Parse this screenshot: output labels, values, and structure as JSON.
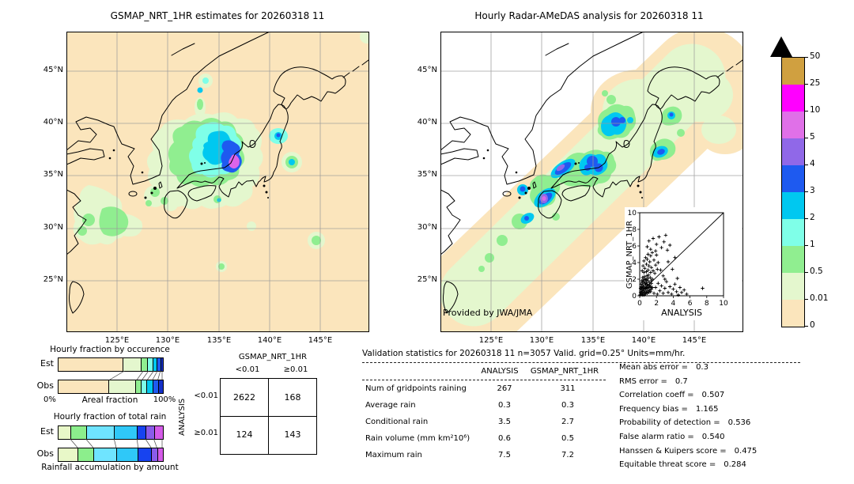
{
  "titles": {
    "left": "GSMAP_NRT_1HR estimates for 20260318 11",
    "right": "Hourly Radar-AMeDAS analysis for 20260318 11"
  },
  "maps": {
    "lat_ticks": [
      "45°N",
      "40°N",
      "35°N",
      "30°N",
      "25°N"
    ],
    "lon_ticks": [
      "125°E",
      "130°E",
      "135°E",
      "140°E",
      "145°E"
    ],
    "credit": "Provided by JWA/JMA"
  },
  "colorbar": {
    "tick_labels": [
      "50",
      "25",
      "10",
      "5",
      "4",
      "3",
      "2",
      "1",
      "0.5",
      "0.01",
      "0"
    ],
    "band_colors_top_to_bottom": [
      "#D0A040",
      "#FF00FF",
      "#E070E8",
      "#9068E8",
      "#1E5AF0",
      "#00C8F0",
      "#7FFFE8",
      "#90EE90",
      "#E4F7CE",
      "#FBE5BC"
    ],
    "over_color": "#000000"
  },
  "inset": {
    "xlabel": "ANALYSIS",
    "ylabel": "GSMAP_NRT_1HR",
    "tick_labels": [
      "0",
      "2",
      "4",
      "6",
      "8",
      "10"
    ]
  },
  "occurrence_chart": {
    "title": "Hourly fraction by occurence",
    "rows": [
      "Est",
      "Obs"
    ],
    "x_left": "0%",
    "x_label": "Areal fraction",
    "x_right": "100%"
  },
  "totalrain_chart": {
    "title": "Hourly fraction of total rain",
    "rows": [
      "Est",
      "Obs"
    ],
    "caption": "Rainfall accumulation by amount"
  },
  "contingency": {
    "col_title": "GSMAP_NRT_1HR",
    "row_title": "ANALYSIS",
    "col_labels": [
      "<0.01",
      "≥0.01"
    ],
    "row_labels": [
      "<0.01",
      "≥0.01"
    ],
    "cells": [
      [
        "2622",
        "168"
      ],
      [
        "124",
        "143"
      ]
    ]
  },
  "validation": {
    "header": "Validation statistics for 20260318 11  n=3057 Valid. grid=0.25° Units=mm/hr.",
    "col_headers": [
      "ANALYSIS",
      "GSMAP_NRT_1HR"
    ],
    "rows": [
      {
        "label": "Num of gridpoints raining",
        "analysis": "267",
        "gsmap": "311"
      },
      {
        "label": "Average rain",
        "analysis": "0.3",
        "gsmap": "0.3"
      },
      {
        "label": "Conditional rain",
        "analysis": "3.5",
        "gsmap": "2.7"
      },
      {
        "label": "Rain volume (mm km²10⁶)",
        "analysis": "0.6",
        "gsmap": "0.5"
      },
      {
        "label": "Maximum rain",
        "analysis": "7.5",
        "gsmap": "7.2"
      }
    ],
    "stats": [
      {
        "label": "Mean abs error =",
        "value": "0.3"
      },
      {
        "label": "RMS error =",
        "value": "0.7"
      },
      {
        "label": "Correlation coeff =",
        "value": "0.507"
      },
      {
        "label": "Frequency bias =",
        "value": "1.165"
      },
      {
        "label": "Probability of detection =",
        "value": "0.536"
      },
      {
        "label": "False alarm ratio =",
        "value": "0.540"
      },
      {
        "label": "Hanssen & Kuipers score =",
        "value": "0.475"
      },
      {
        "label": "Equitable threat score =",
        "value": "0.284"
      }
    ]
  },
  "chart_data": [
    {
      "type": "map",
      "name": "GSMAP_NRT_1HR estimates",
      "region": "Japan 120-150E 20-49N",
      "units": "mm/hr",
      "colorbar_levels": [
        0,
        0.01,
        0.5,
        1,
        2,
        3,
        4,
        5,
        10,
        25,
        50
      ]
    },
    {
      "type": "map",
      "name": "Hourly Radar-AMeDAS analysis",
      "region": "Japan 120-150E 20-49N",
      "units": "mm/hr",
      "colorbar_levels": [
        0,
        0.01,
        0.5,
        1,
        2,
        3,
        4,
        5,
        10,
        25,
        50
      ]
    },
    {
      "type": "bar",
      "subtype": "stacked-horizontal",
      "title": "Hourly fraction by occurence",
      "xlabel": "Areal fraction",
      "xlim_labels": [
        "0%",
        "100%"
      ],
      "categories": [
        "Est",
        "Obs"
      ],
      "segment_colors": [
        "#FBE5BC",
        "#E4F7CE",
        "#90EE90",
        "#7FFFE8",
        "#00C8F0",
        "#1E5AF0",
        "#1530C8"
      ],
      "series": [
        {
          "name": "Est",
          "fractions": [
            0.64,
            0.18,
            0.05,
            0.05,
            0.035,
            0.028,
            0.017
          ]
        },
        {
          "name": "Obs",
          "fractions": [
            0.5,
            0.26,
            0.05,
            0.05,
            0.05,
            0.05,
            0.04
          ]
        }
      ]
    },
    {
      "type": "bar",
      "subtype": "stacked-horizontal",
      "title": "Hourly fraction of total rain",
      "xlabel": "Rainfall accumulation by amount",
      "categories": [
        "Est",
        "Obs"
      ],
      "segment_colors": [
        "#E8F8C8",
        "#8CEE8C",
        "#6FE4FF",
        "#2FC8F8",
        "#1743F0",
        "#8A5CEA",
        "#D45BE8"
      ],
      "series": [
        {
          "name": "Est",
          "fractions": [
            0.12,
            0.15,
            0.27,
            0.22,
            0.08,
            0.08,
            0.08
          ]
        },
        {
          "name": "Obs",
          "fractions": [
            0.19,
            0.15,
            0.22,
            0.21,
            0.125,
            0.055,
            0.05
          ]
        }
      ]
    },
    {
      "type": "table",
      "title": "Contingency table",
      "col_axis": "GSMAP_NRT_1HR",
      "row_axis": "ANALYSIS",
      "col_bins": [
        "<0.01",
        ">=0.01"
      ],
      "row_bins": [
        "<0.01",
        ">=0.01"
      ],
      "values": [
        [
          2622,
          168
        ],
        [
          124,
          143
        ]
      ]
    },
    {
      "type": "table",
      "title": "Validation statistics for 20260318 11",
      "n": 3057,
      "grid": "0.25deg",
      "units": "mm/hr",
      "columns": [
        "ANALYSIS",
        "GSMAP_NRT_1HR"
      ],
      "rows": [
        {
          "label": "Num of gridpoints raining",
          "values": [
            267,
            311
          ]
        },
        {
          "label": "Average rain",
          "values": [
            0.3,
            0.3
          ]
        },
        {
          "label": "Conditional rain",
          "values": [
            3.5,
            2.7
          ]
        },
        {
          "label": "Rain volume (mm km2 10^6)",
          "values": [
            0.6,
            0.5
          ]
        },
        {
          "label": "Maximum rain",
          "values": [
            7.5,
            7.2
          ]
        }
      ],
      "scores": {
        "Mean abs error": 0.3,
        "RMS error": 0.7,
        "Correlation coeff": 0.507,
        "Frequency bias": 1.165,
        "Probability of detection": 0.536,
        "False alarm ratio": 0.54,
        "Hanssen & Kuipers score": 0.475,
        "Equitable threat score": 0.284
      }
    },
    {
      "type": "scatter",
      "xlabel": "ANALYSIS",
      "ylabel": "GSMAP_NRT_1HR",
      "xlim": [
        0,
        10
      ],
      "ylim": [
        0,
        10
      ],
      "ticks": [
        0,
        2,
        4,
        6,
        8,
        10
      ],
      "identity_line": {
        "x1": 0,
        "y1": 0.3,
        "x2": 10,
        "y2": 10
      },
      "points": [
        [
          0.05,
          0.1
        ],
        [
          0.1,
          0.4
        ],
        [
          0.1,
          0.9
        ],
        [
          0.15,
          1.4
        ],
        [
          0.2,
          0.2
        ],
        [
          0.2,
          0.7
        ],
        [
          0.2,
          1.1
        ],
        [
          0.25,
          1.8
        ],
        [
          0.3,
          0.1
        ],
        [
          0.3,
          0.5
        ],
        [
          0.3,
          1.0
        ],
        [
          0.3,
          1.6
        ],
        [
          0.35,
          2.2
        ],
        [
          0.4,
          0.3
        ],
        [
          0.4,
          0.8
        ],
        [
          0.4,
          1.3
        ],
        [
          0.45,
          1.9
        ],
        [
          0.5,
          0.1
        ],
        [
          0.5,
          0.6
        ],
        [
          0.5,
          1.1
        ],
        [
          0.5,
          1.7
        ],
        [
          0.55,
          2.3
        ],
        [
          0.6,
          0.4
        ],
        [
          0.6,
          0.9
        ],
        [
          0.6,
          1.5
        ],
        [
          0.65,
          2.0
        ],
        [
          0.7,
          0.2
        ],
        [
          0.7,
          0.8
        ],
        [
          0.7,
          1.3
        ],
        [
          0.75,
          1.9
        ],
        [
          0.8,
          0.5
        ],
        [
          0.8,
          1.0
        ],
        [
          0.8,
          1.6
        ],
        [
          0.85,
          2.4
        ],
        [
          0.9,
          0.3
        ],
        [
          0.9,
          0.9
        ],
        [
          0.9,
          1.4
        ],
        [
          0.95,
          2.1
        ],
        [
          1.0,
          0.6
        ],
        [
          1.0,
          1.2
        ],
        [
          1.0,
          1.8
        ],
        [
          1.05,
          2.5
        ],
        [
          1.1,
          0.4
        ],
        [
          1.1,
          1.0
        ],
        [
          1.15,
          1.6
        ],
        [
          1.2,
          0.7
        ],
        [
          1.2,
          1.3
        ],
        [
          1.25,
          2.2
        ],
        [
          1.3,
          0.5
        ],
        [
          1.3,
          1.1
        ],
        [
          1.35,
          1.8
        ],
        [
          1.4,
          0.8
        ],
        [
          1.4,
          1.5
        ],
        [
          1.5,
          1.0
        ],
        [
          1.5,
          2.0
        ],
        [
          0.3,
          3.0
        ],
        [
          0.4,
          3.6
        ],
        [
          0.5,
          2.8
        ],
        [
          0.5,
          4.2
        ],
        [
          0.6,
          3.3
        ],
        [
          0.7,
          4.6
        ],
        [
          0.8,
          2.9
        ],
        [
          0.8,
          3.8
        ],
        [
          0.9,
          4.4
        ],
        [
          1.0,
          3.1
        ],
        [
          1.0,
          5.0
        ],
        [
          1.1,
          3.6
        ],
        [
          1.2,
          4.1
        ],
        [
          1.3,
          2.8
        ],
        [
          1.3,
          4.8
        ],
        [
          1.4,
          3.4
        ],
        [
          1.5,
          5.2
        ],
        [
          1.6,
          3.0
        ],
        [
          1.7,
          4.3
        ],
        [
          1.8,
          2.7
        ],
        [
          1.9,
          3.7
        ],
        [
          2.0,
          4.9
        ],
        [
          2.1,
          3.2
        ],
        [
          2.2,
          4.0
        ],
        [
          0.9,
          5.9
        ],
        [
          1.1,
          6.6
        ],
        [
          1.3,
          5.6
        ],
        [
          1.6,
          6.9
        ],
        [
          1.9,
          5.4
        ],
        [
          2.0,
          6.2
        ],
        [
          2.3,
          7.1
        ],
        [
          2.6,
          5.8
        ],
        [
          2.9,
          6.5
        ],
        [
          3.1,
          7.3
        ],
        [
          3.3,
          5.5
        ],
        [
          3.6,
          6.1
        ],
        [
          1.7,
          0.3
        ],
        [
          1.9,
          1.0
        ],
        [
          2.1,
          0.2
        ],
        [
          2.2,
          1.5
        ],
        [
          2.4,
          0.6
        ],
        [
          2.6,
          1.2
        ],
        [
          2.8,
          0.3
        ],
        [
          3.0,
          0.9
        ],
        [
          3.2,
          1.7
        ],
        [
          3.4,
          0.4
        ],
        [
          3.6,
          1.1
        ],
        [
          3.8,
          0.2
        ],
        [
          4.0,
          0.8
        ],
        [
          4.2,
          1.4
        ],
        [
          4.4,
          0.5
        ],
        [
          4.6,
          0.1
        ],
        [
          4.8,
          1.0
        ],
        [
          5.0,
          0.4
        ],
        [
          5.3,
          0.7
        ],
        [
          5.6,
          0.2
        ],
        [
          7.5,
          0.9
        ],
        [
          4.5,
          2.1
        ],
        [
          3.9,
          3.2
        ],
        [
          4.2,
          4.6
        ],
        [
          3.4,
          4.1
        ],
        [
          2.8,
          2.4
        ],
        [
          2.5,
          3.1
        ],
        [
          3.0,
          2.0
        ]
      ]
    }
  ]
}
